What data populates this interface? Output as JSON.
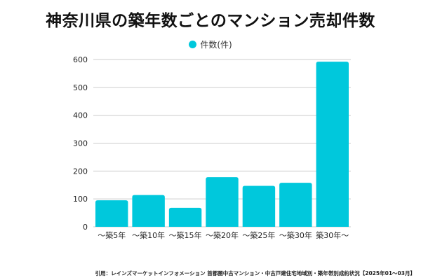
{
  "title": "神奈川県の築年数ごとのマンション売却件数",
  "source": "引用：レインズマーケットインフォメーション 首都圏中古マンション・中古戸建住宅地域別・築年帯別成約状況【2025年01～03月】",
  "colors": {
    "bar": "#00C8DC",
    "grid": "#cccccc"
  },
  "chart_data": {
    "type": "bar",
    "title": "神奈川県の築年数ごとのマンション売却件数",
    "categories": [
      "～築5年",
      "～築10年",
      "～築15年",
      "～築20年",
      "～築25年",
      "～築30年",
      "築30年～"
    ],
    "series": [
      {
        "name": "件数(件)",
        "values": [
          95,
          114,
          68,
          178,
          147,
          158,
          592
        ]
      }
    ],
    "yticks": [
      "0",
      "100",
      "200",
      "300",
      "400",
      "500",
      "600"
    ],
    "ylim": [
      0,
      600
    ],
    "grid": true,
    "legend": "top-center",
    "xlabel": "",
    "ylabel": ""
  }
}
